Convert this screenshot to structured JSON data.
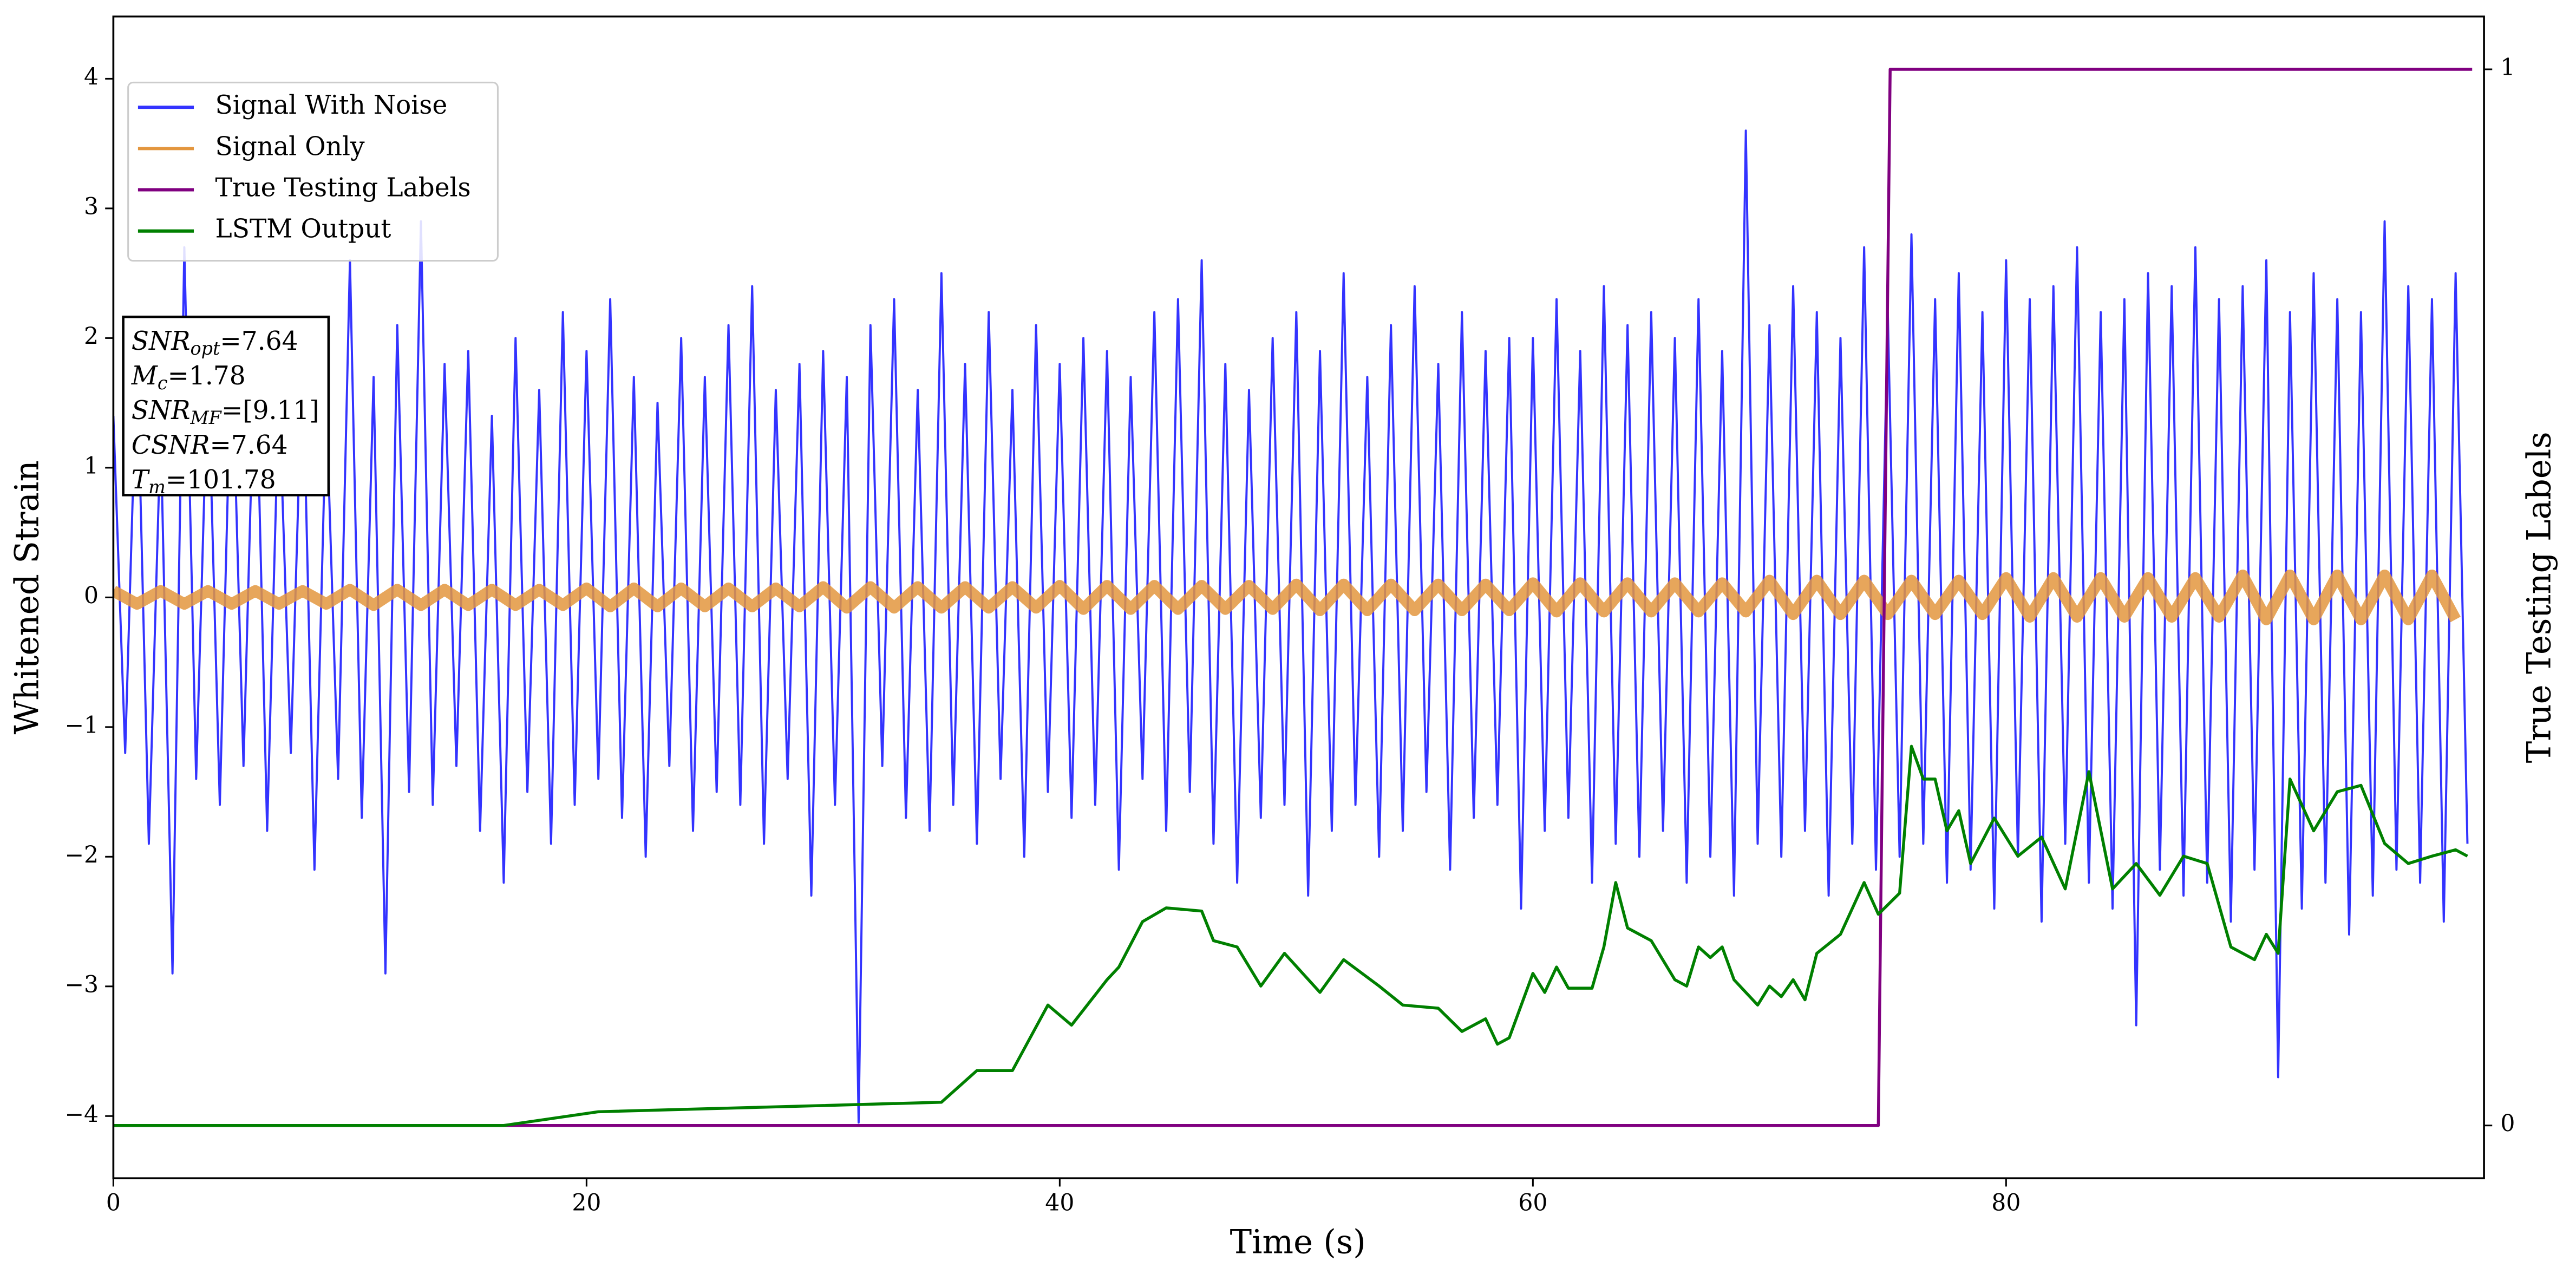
{
  "chart_data": {
    "type": "line",
    "xlabel": "Time (s)",
    "ylabel": "Whitened Strain",
    "y2label": "True Testing Labels",
    "xlim": [
      0,
      100.2
    ],
    "ylim": [
      -4.48,
      4.48
    ],
    "y2lim": [
      -0.05,
      1.05
    ],
    "xticks": [
      0,
      20,
      40,
      60,
      80
    ],
    "yticks": [
      {
        "value": -4,
        "label": "−4"
      },
      {
        "value": -3,
        "label": "−3"
      },
      {
        "value": -2,
        "label": "−2"
      },
      {
        "value": -1,
        "label": "−1"
      },
      0,
      1,
      2,
      3,
      4
    ],
    "y2ticks": [
      0,
      1
    ],
    "grid": false,
    "legend": "upper left",
    "annotation": [
      {
        "main": "SNR",
        "sub": "opt",
        "text": "=7.64"
      },
      {
        "main": "M",
        "sub": "c",
        "text": "=1.78"
      },
      {
        "main": "SNR",
        "sub": "MF",
        "text": "=[9.11]"
      },
      {
        "main": "CSNR",
        "text": "=7.64"
      },
      {
        "main": "T",
        "sub": "m",
        "text": "=101.78"
      }
    ],
    "series": [
      {
        "name": "Signal With Noise",
        "color": "#3333ff",
        "x": [
          0,
          0.5,
          1,
          1.5,
          2,
          2.5,
          3,
          3.5,
          4,
          4.5,
          5,
          5.5,
          6,
          6.5,
          7,
          7.5,
          8,
          8.5,
          9,
          9.5,
          10,
          10.5,
          11,
          11.5,
          12,
          12.5,
          13,
          13.5,
          14,
          14.5,
          15,
          15.5,
          16,
          16.5,
          17,
          17.5,
          18,
          18.5,
          19,
          19.5,
          20,
          20.5,
          21,
          21.5,
          22,
          22.5,
          23,
          23.5,
          24,
          24.5,
          25,
          25.5,
          26,
          26.5,
          27,
          27.5,
          28,
          28.5,
          29,
          29.5,
          30,
          30.5,
          31,
          31.5,
          32,
          32.5,
          33,
          33.5,
          34,
          34.5,
          35,
          35.5,
          36,
          36.5,
          37,
          37.5,
          38,
          38.5,
          39,
          39.5,
          40,
          40.5,
          41,
          41.5,
          42,
          42.5,
          43,
          43.5,
          44,
          44.5,
          45,
          45.5,
          46,
          46.5,
          47,
          47.5,
          48,
          48.5,
          49,
          49.5,
          50,
          50.5,
          51,
          51.5,
          52,
          52.5,
          53,
          53.5,
          54,
          54.5,
          55,
          55.5,
          56,
          56.5,
          57,
          57.5,
          58,
          58.5,
          59,
          59.5,
          60,
          60.5,
          61,
          61.5,
          62,
          62.5,
          63,
          63.5,
          64,
          64.5,
          65,
          65.5,
          66,
          66.5,
          67,
          67.5,
          68,
          68.5,
          69,
          69.5,
          70,
          70.5,
          71,
          71.5,
          72,
          72.5,
          73,
          73.5,
          74,
          74.5,
          75,
          75.5,
          76,
          76.5,
          77,
          77.5,
          78,
          78.5,
          79,
          79.5,
          80,
          80.5,
          81,
          81.5,
          82,
          82.5,
          83,
          83.5,
          84,
          84.5,
          85,
          85.5,
          86,
          86.5,
          87,
          87.5,
          88,
          88.5,
          89,
          89.5,
          90,
          90.5,
          91,
          91.5,
          92,
          92.5,
          93,
          93.5,
          94,
          94.5,
          95,
          95.5,
          96,
          96.5,
          97,
          97.5,
          98,
          98.5,
          99,
          99.5
        ],
        "values": [
          1.4,
          -1.2,
          1.9,
          -1.9,
          1.3,
          -2.9,
          2.7,
          -1.4,
          1.8,
          -1.6,
          2.0,
          -1.3,
          2.1,
          -1.8,
          1.6,
          -1.2,
          1.9,
          -2.1,
          1.5,
          -1.4,
          2.6,
          -1.7,
          1.7,
          -2.9,
          2.1,
          -1.5,
          2.9,
          -1.6,
          1.8,
          -1.3,
          1.9,
          -1.8,
          1.4,
          -2.2,
          2.0,
          -1.5,
          1.6,
          -1.9,
          2.2,
          -1.6,
          1.9,
          -1.4,
          2.3,
          -1.7,
          1.7,
          -2.0,
          1.5,
          -1.3,
          2.0,
          -1.8,
          1.7,
          -1.5,
          2.1,
          -1.6,
          2.4,
          -1.9,
          1.6,
          -1.4,
          1.8,
          -2.3,
          1.9,
          -1.6,
          1.7,
          -4.05,
          2.1,
          -1.3,
          2.3,
          -1.7,
          1.6,
          -1.8,
          2.5,
          -1.6,
          1.8,
          -1.9,
          2.2,
          -1.4,
          1.6,
          -2.0,
          2.1,
          -1.5,
          1.8,
          -1.7,
          2.0,
          -1.6,
          1.9,
          -2.1,
          1.7,
          -1.4,
          2.2,
          -1.8,
          2.3,
          -1.5,
          2.6,
          -1.9,
          1.8,
          -2.2,
          1.6,
          -1.7,
          2.0,
          -1.6,
          2.2,
          -2.3,
          1.9,
          -1.8,
          2.5,
          -1.6,
          1.7,
          -2.0,
          2.1,
          -1.8,
          2.4,
          -1.5,
          1.8,
          -2.1,
          2.2,
          -1.7,
          1.9,
          -1.6,
          2.0,
          -2.4,
          2.0,
          -1.8,
          2.3,
          -1.7,
          1.9,
          -2.2,
          2.4,
          -1.9,
          2.1,
          -2.0,
          2.2,
          -1.8,
          2.0,
          -2.2,
          2.3,
          -2.0,
          1.9,
          -2.3,
          3.6,
          -1.9,
          2.1,
          -2.0,
          2.4,
          -1.8,
          2.2,
          -2.3,
          2.0,
          -1.9,
          2.7,
          -2.1,
          2.2,
          -2.0,
          2.8,
          -1.9,
          2.3,
          -2.2,
          2.5,
          -2.1,
          2.2,
          -2.4,
          2.6,
          -2.0,
          2.3,
          -2.5,
          2.4,
          -1.9,
          2.7,
          -2.2,
          2.2,
          -2.4,
          2.3,
          -3.3,
          2.5,
          -2.1,
          2.4,
          -2.3,
          2.7,
          -2.2,
          2.3,
          -2.5,
          2.4,
          -2.1,
          2.6,
          -3.7,
          2.2,
          -2.4,
          2.5,
          -2.2,
          2.3,
          -2.6,
          2.2,
          -2.3,
          2.9,
          -2.1,
          2.4,
          -2.2,
          2.3,
          -2.5,
          2.5,
          -1.9
        ]
      },
      {
        "name": "Signal Only",
        "color": "#e3963e",
        "x": [
          0,
          1,
          2,
          3,
          4,
          5,
          6,
          7,
          8,
          9,
          10,
          11,
          12,
          13,
          14,
          15,
          16,
          17,
          18,
          19,
          20,
          21,
          22,
          23,
          24,
          25,
          26,
          27,
          28,
          29,
          30,
          31,
          32,
          33,
          34,
          35,
          36,
          37,
          38,
          39,
          40,
          41,
          42,
          43,
          44,
          45,
          46,
          47,
          48,
          49,
          50,
          51,
          52,
          53,
          54,
          55,
          56,
          57,
          58,
          59,
          60,
          61,
          62,
          63,
          64,
          65,
          66,
          67,
          68,
          69,
          70,
          71,
          72,
          73,
          74,
          75,
          76,
          77,
          78,
          79,
          80,
          81,
          82,
          83,
          84,
          85,
          86,
          87,
          88,
          89,
          90,
          91,
          92,
          93,
          94,
          95,
          96,
          97,
          98,
          99
        ],
        "values": [
          0.05,
          -0.05,
          0.05,
          -0.05,
          0.05,
          -0.05,
          0.05,
          -0.05,
          0.05,
          -0.05,
          0.06,
          -0.06,
          0.06,
          -0.06,
          0.06,
          -0.06,
          0.06,
          -0.06,
          0.06,
          -0.06,
          0.07,
          -0.07,
          0.07,
          -0.07,
          0.07,
          -0.07,
          0.07,
          -0.07,
          0.07,
          -0.07,
          0.08,
          -0.08,
          0.08,
          -0.08,
          0.08,
          -0.08,
          0.08,
          -0.08,
          0.08,
          -0.08,
          0.09,
          -0.09,
          0.09,
          -0.09,
          0.09,
          -0.09,
          0.09,
          -0.09,
          0.09,
          -0.09,
          0.1,
          -0.1,
          0.1,
          -0.1,
          0.1,
          -0.1,
          0.1,
          -0.1,
          0.1,
          -0.1,
          0.11,
          -0.11,
          0.11,
          -0.11,
          0.11,
          -0.11,
          0.11,
          -0.11,
          0.11,
          -0.11,
          0.13,
          -0.13,
          0.13,
          -0.13,
          0.13,
          -0.13,
          0.13,
          -0.13,
          0.13,
          -0.13,
          0.15,
          -0.15,
          0.15,
          -0.15,
          0.15,
          -0.15,
          0.15,
          -0.15,
          0.15,
          -0.15,
          0.17,
          -0.17,
          0.17,
          -0.17,
          0.17,
          -0.17,
          0.17,
          -0.17,
          0.17,
          -0.17
        ]
      },
      {
        "name": "True Testing Labels",
        "color": "#800080",
        "axis": "y2",
        "x": [
          0,
          74.6,
          75.1,
          99.7
        ],
        "values": [
          0,
          0,
          1,
          1
        ]
      },
      {
        "name": "LSTM Output",
        "color": "#008000",
        "axis": "y2",
        "x": [
          0,
          16.5,
          20.5,
          35,
          36.5,
          38,
          39.5,
          40.5,
          42,
          42.5,
          43.5,
          44.5,
          46,
          46.5,
          47.5,
          48.5,
          49.5,
          51,
          52,
          53.5,
          54.5,
          56,
          57,
          58,
          58.5,
          59,
          60,
          60.5,
          61,
          61.5,
          62.5,
          63,
          63.5,
          64,
          65,
          66,
          66.5,
          67,
          67.5,
          68,
          68.5,
          69.5,
          70,
          70.5,
          71,
          71.5,
          72,
          73,
          74,
          74.6,
          75.5,
          76,
          76.5,
          77,
          77.5,
          78,
          78.5,
          79.5,
          80.5,
          81.5,
          82.5,
          83.5,
          84.5,
          85.5,
          86.5,
          87.5,
          88.5,
          89.5,
          90.5,
          91,
          91.5,
          92,
          93,
          94,
          95,
          96,
          97,
          98,
          99,
          99.5
        ],
        "values": [
          0,
          0,
          0.013,
          0.022,
          0.052,
          0.052,
          0.114,
          0.095,
          0.138,
          0.15,
          0.193,
          0.206,
          0.203,
          0.175,
          0.169,
          0.132,
          0.163,
          0.126,
          0.157,
          0.132,
          0.114,
          0.111,
          0.089,
          0.101,
          0.077,
          0.083,
          0.144,
          0.126,
          0.15,
          0.13,
          0.13,
          0.169,
          0.23,
          0.187,
          0.175,
          0.138,
          0.132,
          0.169,
          0.159,
          0.169,
          0.138,
          0.114,
          0.132,
          0.122,
          0.138,
          0.119,
          0.163,
          0.181,
          0.23,
          0.2,
          0.22,
          0.359,
          0.328,
          0.328,
          0.279,
          0.298,
          0.248,
          0.291,
          0.255,
          0.273,
          0.224,
          0.335,
          0.224,
          0.248,
          0.218,
          0.255,
          0.248,
          0.169,
          0.157,
          0.181,
          0.163,
          0.328,
          0.279,
          0.316,
          0.322,
          0.267,
          0.248,
          0.255,
          0.261,
          0.255
        ]
      }
    ]
  }
}
